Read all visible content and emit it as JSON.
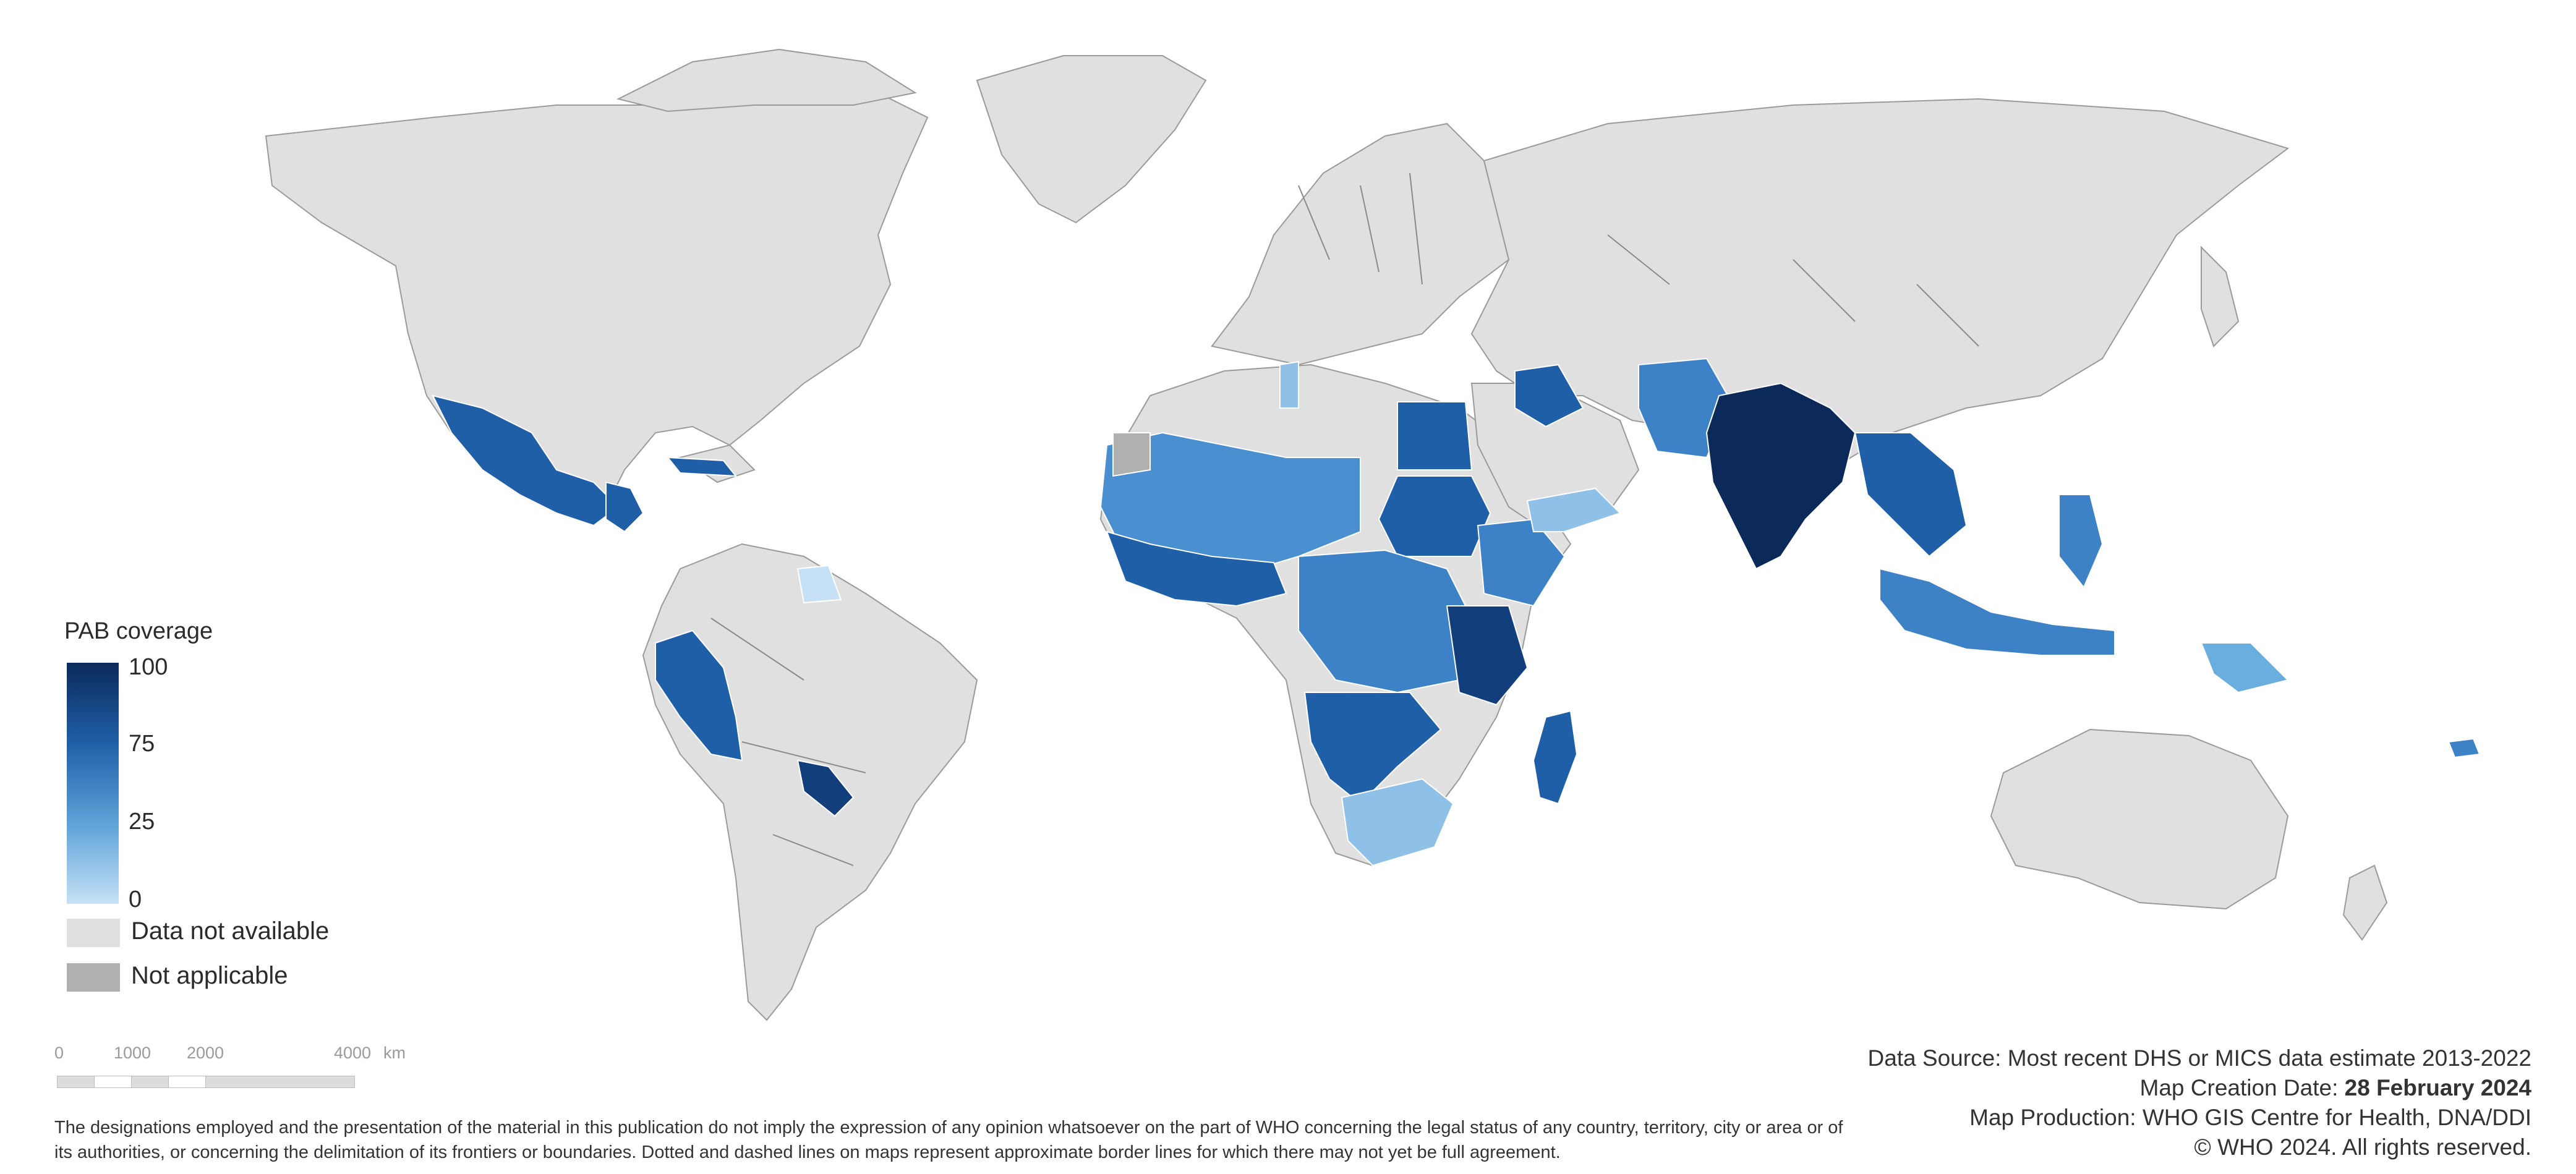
{
  "map": {
    "title": "",
    "countries": [
      {
        "name": "India",
        "level": "very-high",
        "color": "#0b2a5a"
      },
      {
        "name": "Mexico",
        "level": "high",
        "color": "#1f5fa8"
      },
      {
        "name": "Peru",
        "level": "high",
        "color": "#1f5fa8"
      },
      {
        "name": "Paraguay",
        "level": "very-high",
        "color": "#123f7c"
      },
      {
        "name": "Egypt",
        "level": "high",
        "color": "#1f5fa8"
      },
      {
        "name": "Sudan",
        "level": "high",
        "color": "#1f5fa8"
      },
      {
        "name": "Madagascar",
        "level": "high",
        "color": "#1f5fa8"
      },
      {
        "name": "Tunisia",
        "level": "low",
        "color": "#8ec0e8"
      },
      {
        "name": "Yemen",
        "level": "low",
        "color": "#8ec0e8"
      },
      {
        "name": "South Africa",
        "level": "low",
        "color": "#8ec0e8"
      },
      {
        "name": "Suriname",
        "level": "very-low",
        "color": "#c6e1f6"
      },
      {
        "name": "Indonesia",
        "level": "medium",
        "color": "#3d82c6"
      },
      {
        "name": "Philippines",
        "level": "medium",
        "color": "#3d82c6"
      },
      {
        "name": "Papua New Guinea",
        "level": "low",
        "color": "#6aaee0"
      },
      {
        "name": "Pakistan",
        "level": "medium",
        "color": "#3d82c6"
      },
      {
        "name": "Western Sahara",
        "level": "not-applicable",
        "color": "#b0b0b0"
      }
    ]
  },
  "legend": {
    "title": "PAB coverage",
    "ticks": [
      "100",
      "75",
      "25",
      "0"
    ],
    "ramp_colors": [
      "#0b2a5a",
      "#1f5fa8",
      "#5da2d8",
      "#c6e1f6"
    ],
    "not_available_label": "Data not available",
    "not_available_color": "#e0e0e0",
    "not_applicable_label": "Not applicable",
    "not_applicable_color": "#b0b0b0"
  },
  "scalebar": {
    "labels": [
      "0",
      "1000",
      "2000",
      "4000"
    ],
    "unit": "km"
  },
  "info": {
    "data_source": "Data Source: Most recent DHS or MICS data estimate 2013-2022",
    "creation_date_label": "Map Creation Date: ",
    "creation_date_value": "28 February 2024",
    "production": "Map Production: WHO GIS Centre for Health, DNA/DDI",
    "copyright": "© WHO 2024. All rights reserved."
  },
  "disclaimer": "The designations employed and the presentation of the material in this publication do not imply the expression of any opinion whatsoever on the part of WHO concerning the legal status of any country, territory, city or area or of its authorities, or concerning the delimitation of its frontiers or boundaries. Dotted and dashed lines on maps represent approximate border lines for which there may not yet be full agreement."
}
